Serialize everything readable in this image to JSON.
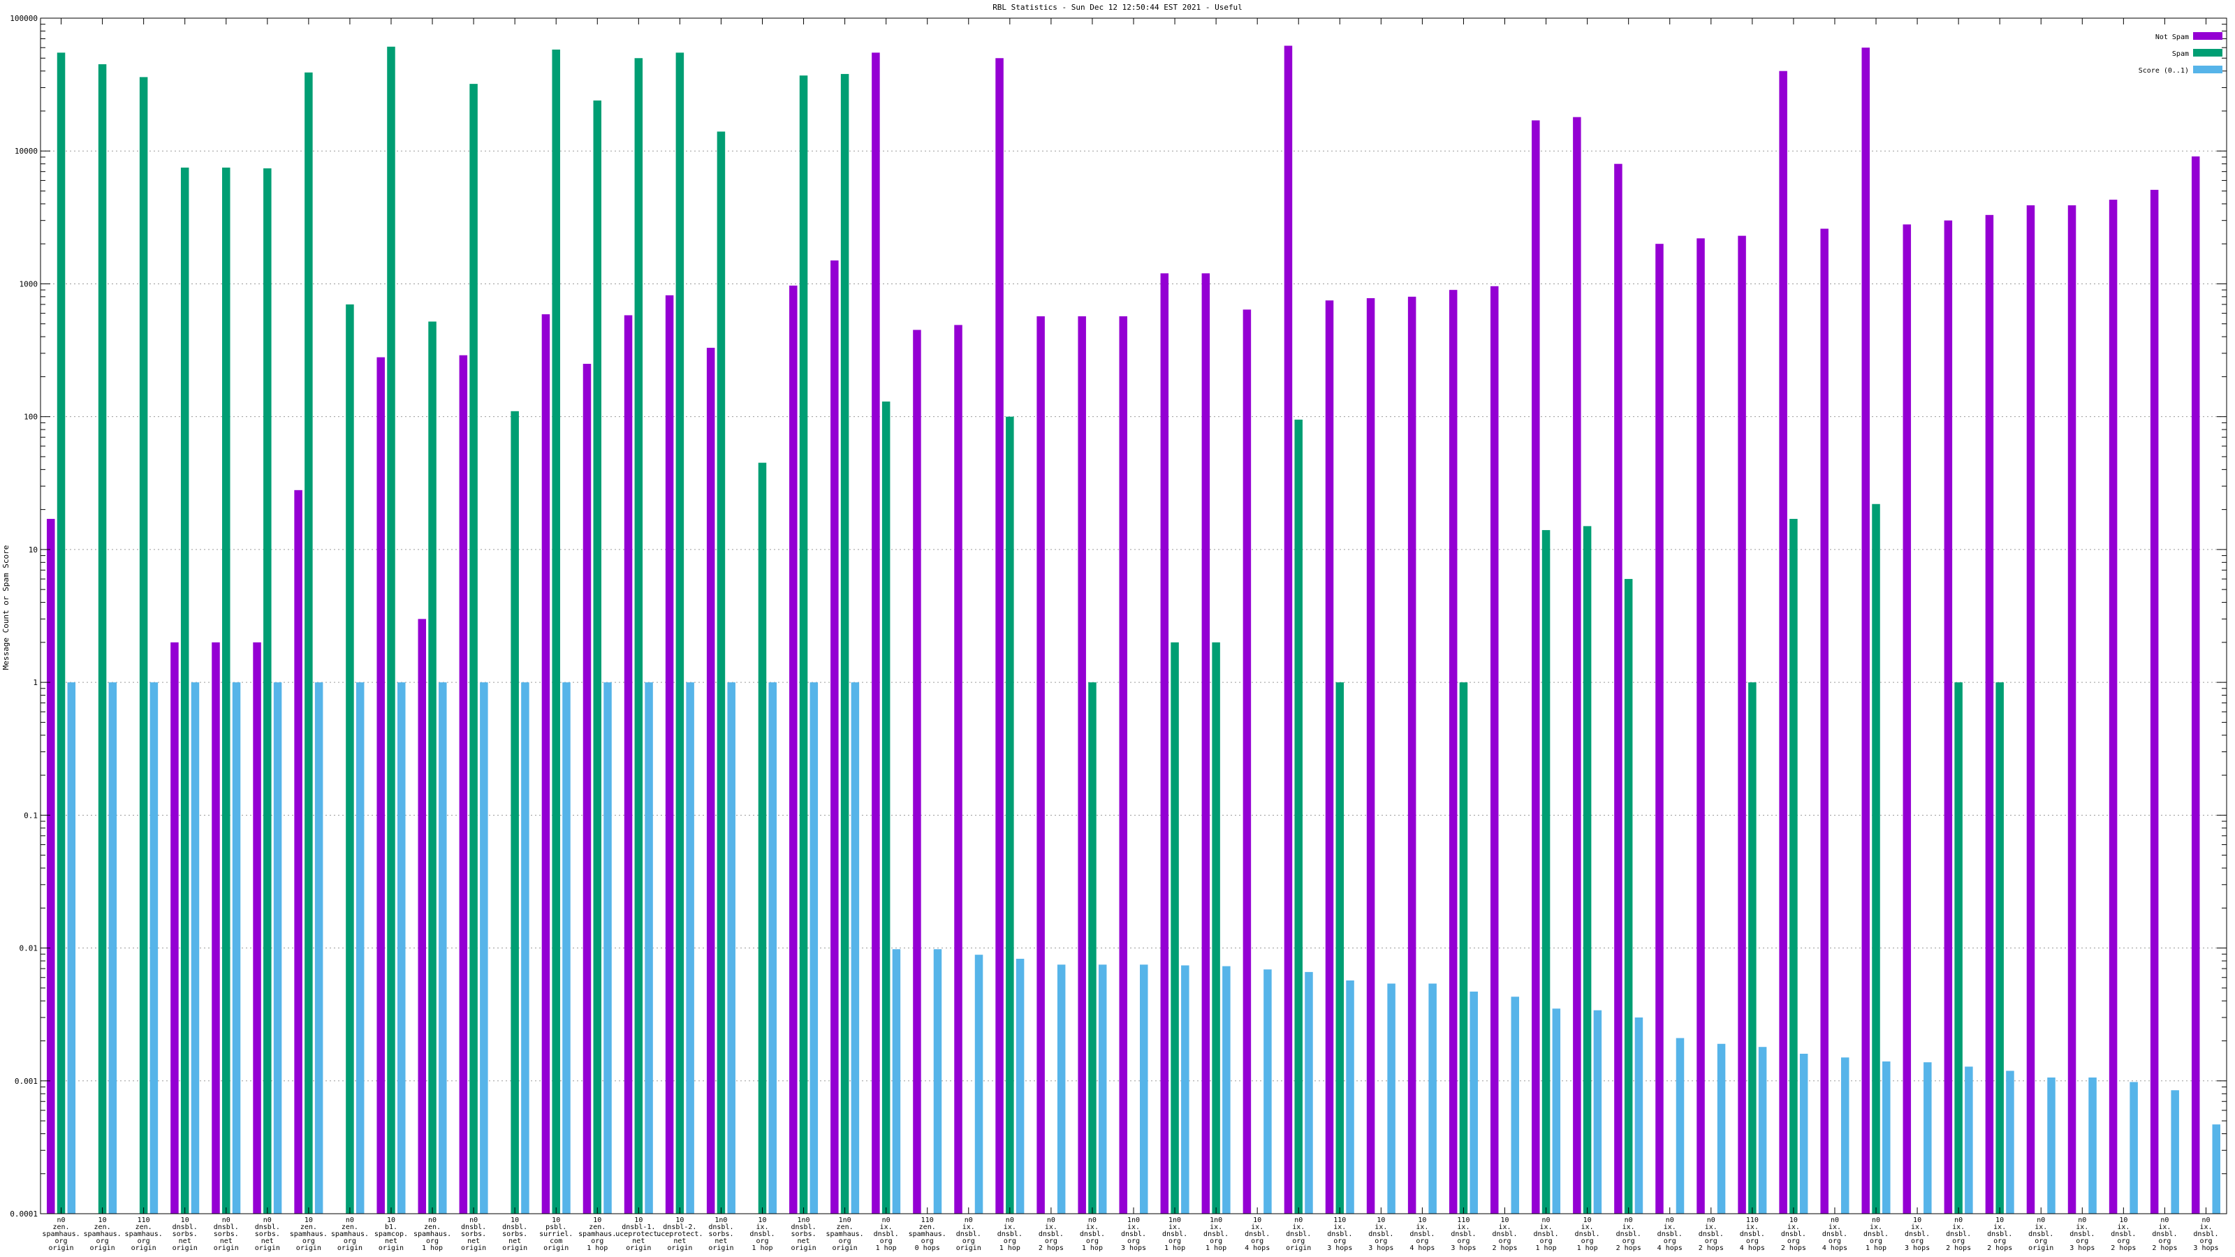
{
  "chart_data": {
    "type": "bar",
    "title": "RBL Statistics - Sun Dec 12 12:50:44 EST 2021 - Useful",
    "xlabel": "",
    "ylabel": "Message Count or Spam Score",
    "yscale": "log",
    "ylim": [
      0.0001,
      100000
    ],
    "yticks": [
      "100000",
      "10000",
      "1000",
      "100",
      "10",
      "1",
      "0.1",
      "0.01",
      "0.001",
      "0.0001"
    ],
    "grid": true,
    "legend_position": "top-right",
    "categories": [
      [
        "n0",
        "zen.",
        "spamhaus.",
        "org",
        "origin"
      ],
      [
        "10",
        "zen.",
        "spamhaus.",
        "org",
        "origin"
      ],
      [
        "110",
        "zen.",
        "spamhaus.",
        "org",
        "origin"
      ],
      [
        "10",
        "dnsbl.",
        "sorbs.",
        "net",
        "origin"
      ],
      [
        "n0",
        "dnsbl.",
        "sorbs.",
        "net",
        "origin"
      ],
      [
        "n0",
        "dnsbl.",
        "sorbs.",
        "net",
        "origin"
      ],
      [
        "10",
        "zen.",
        "spamhaus.",
        "org",
        "origin"
      ],
      [
        "n0",
        "zen.",
        "spamhaus.",
        "org",
        "origin"
      ],
      [
        "10",
        "b1.",
        "spamcop.",
        "net",
        "origin"
      ],
      [
        "n0",
        "zen.",
        "spamhaus.",
        "org",
        "1 hop"
      ],
      [
        "n0",
        "dnsbl.",
        "sorbs.",
        "net",
        "origin"
      ],
      [
        "10",
        "dnsbl.",
        "sorbs.",
        "net",
        "origin"
      ],
      [
        "10",
        "psbl.",
        "surriel.",
        "com",
        "origin"
      ],
      [
        "10",
        "zen.",
        "spamhaus.",
        "org",
        "1 hop"
      ],
      [
        "10",
        "dnsbl-1.",
        "uceprotect.",
        "net",
        "origin"
      ],
      [
        "10",
        "dnsbl-2.",
        "uceprotect.",
        "net",
        "origin"
      ],
      [
        "1n0",
        "dnsbl.",
        "sorbs.",
        "net",
        "origin"
      ],
      [
        "10",
        "ix.",
        "dnsbl.",
        "org",
        "1 hop"
      ],
      [
        "1n0",
        "dnsbl.",
        "sorbs.",
        "net",
        "origin"
      ],
      [
        "1n0",
        "zen.",
        "spamhaus.",
        "org",
        "origin"
      ],
      [
        "n0",
        "ix.",
        "dnsbl.",
        "org",
        "1 hop"
      ],
      [
        "110",
        "zen.",
        "spamhaus.",
        "org",
        "0 hops"
      ],
      [
        "n0",
        "ix.",
        "dnsbl.",
        "org",
        "origin"
      ],
      [
        "n0",
        "ix.",
        "dnsbl.",
        "org",
        "1 hop"
      ],
      [
        "n0",
        "ix.",
        "dnsbl.",
        "org",
        "2 hops"
      ],
      [
        "n0",
        "ix.",
        "dnsbl.",
        "org",
        "1 hop"
      ],
      [
        "1n0",
        "ix.",
        "dnsbl.",
        "org",
        "3 hops"
      ],
      [
        "1n0",
        "ix.",
        "dnsbl.",
        "org",
        "1 hop"
      ],
      [
        "1n0",
        "ix.",
        "dnsbl.",
        "org",
        "1 hop"
      ],
      [
        "10",
        "ix.",
        "dnsbl.",
        "org",
        "4 hops"
      ],
      [
        "n0",
        "ix.",
        "dnsbl.",
        "org",
        "origin"
      ],
      [
        "110",
        "ix.",
        "dnsbl.",
        "org",
        "3 hops"
      ],
      [
        "10",
        "ix.",
        "dnsbl.",
        "org",
        "3 hops"
      ],
      [
        "10",
        "ix.",
        "dnsbl.",
        "org",
        "4 hops"
      ],
      [
        "110",
        "ix.",
        "dnsbl.",
        "org",
        "3 hops"
      ],
      [
        "10",
        "ix.",
        "dnsbl.",
        "org",
        "2 hops"
      ],
      [
        "n0",
        "ix.",
        "dnsbl.",
        "org",
        "1 hop"
      ],
      [
        "10",
        "ix.",
        "dnsbl.",
        "org",
        "1 hop"
      ],
      [
        "n0",
        "ix.",
        "dnsbl.",
        "org",
        "2 hops"
      ],
      [
        "n0",
        "ix.",
        "dnsbl.",
        "org",
        "4 hops"
      ],
      [
        "n0",
        "ix.",
        "dnsbl.",
        "org",
        "2 hops"
      ],
      [
        "110",
        "ix.",
        "dnsbl.",
        "org",
        "4 hops"
      ],
      [
        "10",
        "ix.",
        "dnsbl.",
        "org",
        "2 hops"
      ],
      [
        "n0",
        "ix.",
        "dnsbl.",
        "org",
        "4 hops"
      ],
      [
        "n0",
        "ix.",
        "dnsbl.",
        "org",
        "1 hop"
      ],
      [
        "10",
        "ix.",
        "dnsbl.",
        "org",
        "3 hops"
      ],
      [
        "n0",
        "ix.",
        "dnsbl.",
        "org",
        "2 hops"
      ],
      [
        "10",
        "ix.",
        "dnsbl.",
        "org",
        "2 hops"
      ],
      [
        "n0",
        "ix.",
        "dnsbl.",
        "org",
        "origin"
      ],
      [
        "n0",
        "ix.",
        "dnsbl.",
        "org",
        "3 hops"
      ],
      [
        "10",
        "ix.",
        "dnsbl.",
        "org",
        "2 hops"
      ],
      [
        "n0",
        "ix.",
        "dnsbl.",
        "org",
        "2 hops"
      ],
      [
        "n0",
        "ix.",
        "dnsbl.",
        "org",
        "3 hops"
      ]
    ],
    "series": [
      {
        "name": "Not Spam",
        "color": "#9400d3",
        "values": [
          17,
          null,
          null,
          2,
          2,
          2,
          28,
          null,
          280,
          3,
          290,
          null,
          590,
          250,
          580,
          820,
          330,
          null,
          970,
          1500,
          55000,
          450,
          490,
          50000,
          570,
          570,
          570,
          1200,
          1200,
          640,
          62000,
          750,
          780,
          800,
          900,
          960,
          17000,
          18000,
          8000,
          2000,
          2200,
          2300,
          40000,
          2600,
          60000,
          2800,
          3000,
          3300,
          3900,
          3900,
          4300,
          5100,
          9100
        ]
      },
      {
        "name": "Spam",
        "color": "#009e73",
        "values": [
          55000,
          45000,
          36000,
          7500,
          7500,
          7400,
          39000,
          700,
          61000,
          520,
          32000,
          110,
          58000,
          24000,
          50000,
          55000,
          14000,
          45,
          37000,
          38000,
          130,
          null,
          null,
          100,
          null,
          1,
          null,
          2,
          2,
          null,
          95,
          1,
          null,
          null,
          1,
          null,
          14,
          15,
          6,
          null,
          null,
          1,
          17,
          null,
          22,
          null,
          1,
          1,
          null,
          null,
          null,
          null,
          null
        ]
      },
      {
        "name": "Score (0..1)",
        "color": "#56b4e9",
        "values": [
          1,
          1,
          1,
          1,
          1,
          1,
          1,
          1,
          1,
          1,
          1,
          1,
          1,
          1,
          1,
          1,
          1,
          1,
          1,
          1,
          0.0098,
          0.0098,
          0.0089,
          0.0083,
          0.0075,
          0.0075,
          0.0075,
          0.0074,
          0.0073,
          0.0069,
          0.0066,
          0.0057,
          0.0054,
          0.0054,
          0.0047,
          0.0043,
          0.0035,
          0.0034,
          0.003,
          0.0021,
          0.0019,
          0.0018,
          0.0016,
          0.0015,
          0.0014,
          0.00138,
          0.00128,
          0.00119,
          0.00106,
          0.00106,
          0.00098,
          0.00085,
          0.00047
        ]
      }
    ]
  }
}
